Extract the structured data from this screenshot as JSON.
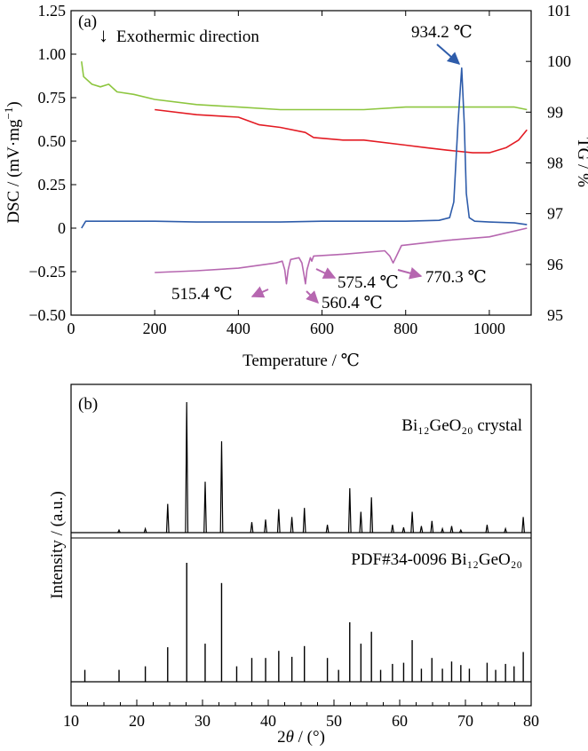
{
  "chart_data": [
    {
      "panel": "(a)",
      "type": "line",
      "annotation": "Exothermic direction",
      "arrow_glyph": "↓",
      "xlabel": "Temperature / ℃",
      "ylabel_left_main": "DSC / (mV·mg",
      "ylabel_left_sup": "−1",
      "ylabel_left_end": ")",
      "ylabel_right": "TG / %",
      "xlim": [
        0,
        1100
      ],
      "ylim_left": [
        -0.5,
        1.25
      ],
      "ylim_right": [
        95,
        101
      ],
      "xticks": [
        0,
        200,
        400,
        600,
        800,
        1000
      ],
      "yticks_left": [
        "1.25",
        "1.00",
        "0.75",
        "0.50",
        "0.25",
        "0",
        "−0.25",
        "−0.50"
      ],
      "yticks_left_values": [
        1.25,
        1.0,
        0.75,
        0.5,
        0.25,
        0,
        -0.25,
        -0.5
      ],
      "yticks_right": [
        95,
        96,
        97,
        98,
        99,
        100,
        101
      ],
      "series": [
        {
          "axis": "right",
          "color": "#8dc63f",
          "points": [
            [
              25,
              100.0
            ],
            [
              30,
              99.7
            ],
            [
              50,
              99.55
            ],
            [
              70,
              99.5
            ],
            [
              90,
              99.55
            ],
            [
              110,
              99.4
            ],
            [
              150,
              99.35
            ],
            [
              200,
              99.25
            ],
            [
              300,
              99.15
            ],
            [
              400,
              99.1
            ],
            [
              500,
              99.05
            ],
            [
              600,
              99.05
            ],
            [
              700,
              99.05
            ],
            [
              800,
              99.1
            ],
            [
              900,
              99.1
            ],
            [
              1000,
              99.1
            ],
            [
              1060,
              99.1
            ],
            [
              1090,
              99.05
            ]
          ]
        },
        {
          "axis": "right",
          "color": "#e31b23",
          "points": [
            [
              200,
              99.05
            ],
            [
              300,
              98.95
            ],
            [
              400,
              98.9
            ],
            [
              450,
              98.75
            ],
            [
              500,
              98.7
            ],
            [
              560,
              98.6
            ],
            [
              580,
              98.5
            ],
            [
              650,
              98.45
            ],
            [
              700,
              98.45
            ],
            [
              800,
              98.35
            ],
            [
              850,
              98.3
            ],
            [
              900,
              98.25
            ],
            [
              960,
              98.2
            ],
            [
              1000,
              98.2
            ],
            [
              1040,
              98.3
            ],
            [
              1070,
              98.45
            ],
            [
              1090,
              98.65
            ]
          ]
        },
        {
          "axis": "left",
          "color": "#2e5caa",
          "points": [
            [
              25,
              0.0
            ],
            [
              35,
              0.04
            ],
            [
              100,
              0.04
            ],
            [
              200,
              0.04
            ],
            [
              300,
              0.035
            ],
            [
              400,
              0.035
            ],
            [
              500,
              0.035
            ],
            [
              600,
              0.04
            ],
            [
              700,
              0.04
            ],
            [
              800,
              0.04
            ],
            [
              880,
              0.045
            ],
            [
              905,
              0.06
            ],
            [
              915,
              0.15
            ],
            [
              925,
              0.6
            ],
            [
              934,
              0.92
            ],
            [
              940,
              0.6
            ],
            [
              945,
              0.2
            ],
            [
              952,
              0.06
            ],
            [
              965,
              0.04
            ],
            [
              1000,
              0.035
            ],
            [
              1060,
              0.03
            ],
            [
              1090,
              0.02
            ]
          ]
        },
        {
          "axis": "left",
          "color": "#b667b0",
          "points": [
            [
              200,
              -0.255
            ],
            [
              300,
              -0.245
            ],
            [
              400,
              -0.23
            ],
            [
              490,
              -0.2
            ],
            [
              505,
              -0.19
            ],
            [
              511,
              -0.24
            ],
            [
              515,
              -0.32
            ],
            [
              519,
              -0.24
            ],
            [
              525,
              -0.18
            ],
            [
              545,
              -0.17
            ],
            [
              552,
              -0.2
            ],
            [
              557,
              -0.27
            ],
            [
              560.4,
              -0.32
            ],
            [
              564,
              -0.24
            ],
            [
              572,
              -0.17
            ],
            [
              575.4,
              -0.19
            ],
            [
              580,
              -0.16
            ],
            [
              650,
              -0.15
            ],
            [
              750,
              -0.13
            ],
            [
              762,
              -0.16
            ],
            [
              770,
              -0.2
            ],
            [
              778,
              -0.16
            ],
            [
              790,
              -0.1
            ],
            [
              900,
              -0.07
            ],
            [
              1000,
              -0.05
            ],
            [
              1090,
              0.0
            ]
          ]
        }
      ],
      "labels": [
        {
          "text": "934.2 ℃",
          "x": 934.2,
          "y": 0.92,
          "color": "#2e5caa"
        },
        {
          "text": "515.4 ℃",
          "x": 515.4,
          "y": -0.32,
          "color": "#b667b0"
        },
        {
          "text": "560.4 ℃",
          "x": 560.4,
          "y": -0.32,
          "color": "#b667b0"
        },
        {
          "text": "575.4 ℃",
          "x": 575.4,
          "y": -0.19,
          "color": "#b667b0"
        },
        {
          "text": "770.3 ℃",
          "x": 770.3,
          "y": -0.2,
          "color": "#b667b0"
        }
      ]
    },
    {
      "panel": "(b)",
      "type": "bar",
      "xlabel_italic": "θ",
      "xlabel_prefix": "2",
      "xlabel_suffix": " / (°)",
      "ylabel": "Intensity / (a.u.)",
      "xlim": [
        10,
        80
      ],
      "xticks": [
        10,
        20,
        30,
        40,
        50,
        60,
        70,
        80
      ],
      "upper_label": "Bi₁₂GeO₂₀ crystal",
      "lower_label": "PDF#34-0096 Bi₁₂GeO₂₀",
      "upper_peaks": [
        [
          17.3,
          2
        ],
        [
          21.3,
          3
        ],
        [
          24.7,
          22
        ],
        [
          27.6,
          100
        ],
        [
          30.4,
          39
        ],
        [
          32.9,
          70
        ],
        [
          37.5,
          8
        ],
        [
          39.6,
          10
        ],
        [
          41.6,
          18
        ],
        [
          43.6,
          12
        ],
        [
          45.5,
          19
        ],
        [
          49.0,
          6
        ],
        [
          52.4,
          34
        ],
        [
          54.1,
          16
        ],
        [
          55.7,
          27
        ],
        [
          58.9,
          6
        ],
        [
          60.6,
          4
        ],
        [
          61.9,
          16
        ],
        [
          63.3,
          5
        ],
        [
          64.9,
          9
        ],
        [
          66.5,
          3
        ],
        [
          67.9,
          5
        ],
        [
          69.3,
          2
        ],
        [
          73.3,
          6
        ],
        [
          76.1,
          3
        ],
        [
          78.8,
          12
        ]
      ],
      "lower_peaks": [
        [
          12.1,
          10
        ],
        [
          17.3,
          10
        ],
        [
          21.3,
          13
        ],
        [
          24.7,
          29
        ],
        [
          27.6,
          100
        ],
        [
          30.4,
          32
        ],
        [
          32.9,
          83
        ],
        [
          35.2,
          13
        ],
        [
          37.5,
          20
        ],
        [
          39.6,
          20
        ],
        [
          41.6,
          26
        ],
        [
          43.6,
          21
        ],
        [
          45.5,
          30
        ],
        [
          49.0,
          20
        ],
        [
          50.7,
          10
        ],
        [
          52.4,
          50
        ],
        [
          54.1,
          32
        ],
        [
          55.7,
          42
        ],
        [
          57.1,
          10
        ],
        [
          58.9,
          15
        ],
        [
          60.6,
          16
        ],
        [
          61.9,
          35
        ],
        [
          63.3,
          11
        ],
        [
          64.9,
          20
        ],
        [
          66.5,
          11
        ],
        [
          67.9,
          17
        ],
        [
          69.3,
          14
        ],
        [
          70.6,
          11
        ],
        [
          73.3,
          16
        ],
        [
          74.6,
          10
        ],
        [
          76.1,
          15
        ],
        [
          77.4,
          13
        ],
        [
          78.8,
          25
        ]
      ]
    }
  ]
}
